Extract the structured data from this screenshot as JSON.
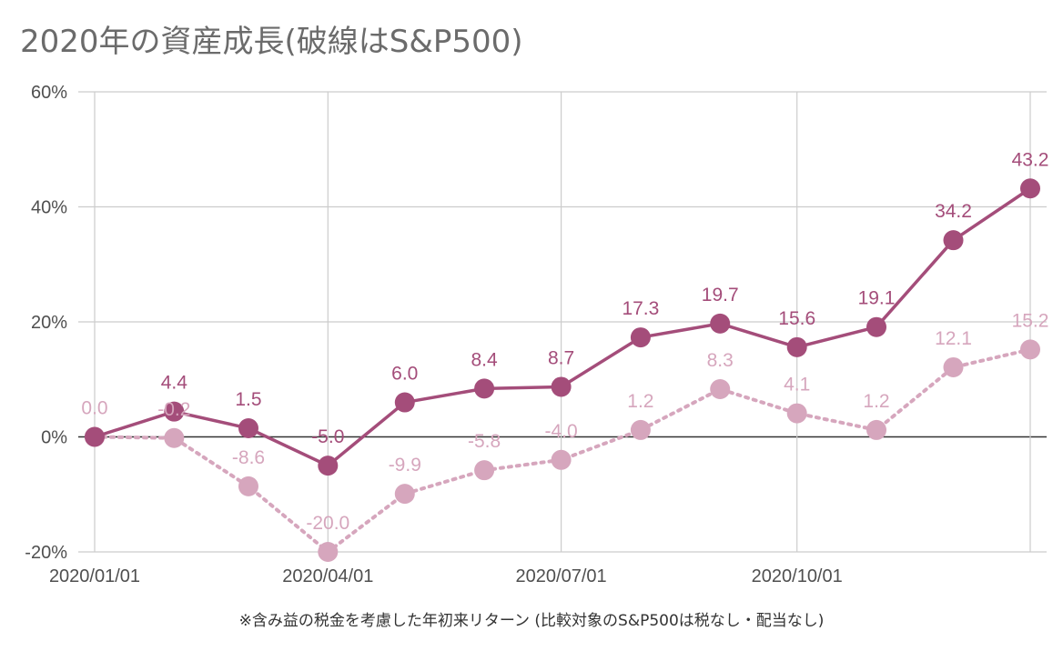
{
  "title": "2020年の資産成長(破線はS&P500)",
  "note": "※含み益の税金を考慮した年初来リターン (比較対象のS&P500は税なし・配当なし)",
  "colors": {
    "portfolio": "#a44d7a",
    "sp500": "#d6a6bd",
    "grid": "#cccccc",
    "zero_line": "#333333",
    "tick_text": "#4f4f4f"
  },
  "chart_data": {
    "type": "line",
    "x": [
      "2020/01/01",
      "2020/02/01",
      "2020/03/01",
      "2020/04/01",
      "2020/05/01",
      "2020/06/01",
      "2020/07/01",
      "2020/08/01",
      "2020/09/01",
      "2020/10/01",
      "2020/11/01",
      "2020/12/01",
      "2020/12/31"
    ],
    "series": [
      {
        "values": [
          0.0,
          4.4,
          1.5,
          -5.0,
          6.0,
          8.4,
          8.7,
          17.3,
          19.7,
          15.6,
          19.1,
          34.2,
          43.2
        ],
        "labels": [
          "",
          "4.4",
          "1.5",
          "-5.0",
          "6.0",
          "8.4",
          "8.7",
          "17.3",
          "19.7",
          "15.6",
          "19.1",
          "34.2",
          "43.2"
        ],
        "style": "solid",
        "color": "#a44d7a"
      },
      {
        "values": [
          0.0,
          -0.2,
          -8.6,
          -20.0,
          -9.9,
          -5.8,
          -4.0,
          1.2,
          8.3,
          4.1,
          1.2,
          12.1,
          15.2
        ],
        "labels": [
          "0.0",
          "-0.2",
          "-8.6",
          "-20.0",
          "-9.9",
          "-5.8",
          "-4.0",
          "1.2",
          "8.3",
          "4.1",
          "1.2",
          "12.1",
          "15.2"
        ],
        "style": "dotted",
        "color": "#d6a6bd"
      }
    ],
    "x_ticks": [
      "2020/01/01",
      "2020/04/01",
      "2020/07/01",
      "2020/10/01"
    ],
    "y_ticks": [
      -20,
      0,
      20,
      40,
      60
    ],
    "y_tick_labels": [
      "-20%",
      "0%",
      "20%",
      "40%",
      "60%"
    ],
    "ylim": [
      -20,
      60
    ],
    "grid": true,
    "legend": "none"
  }
}
